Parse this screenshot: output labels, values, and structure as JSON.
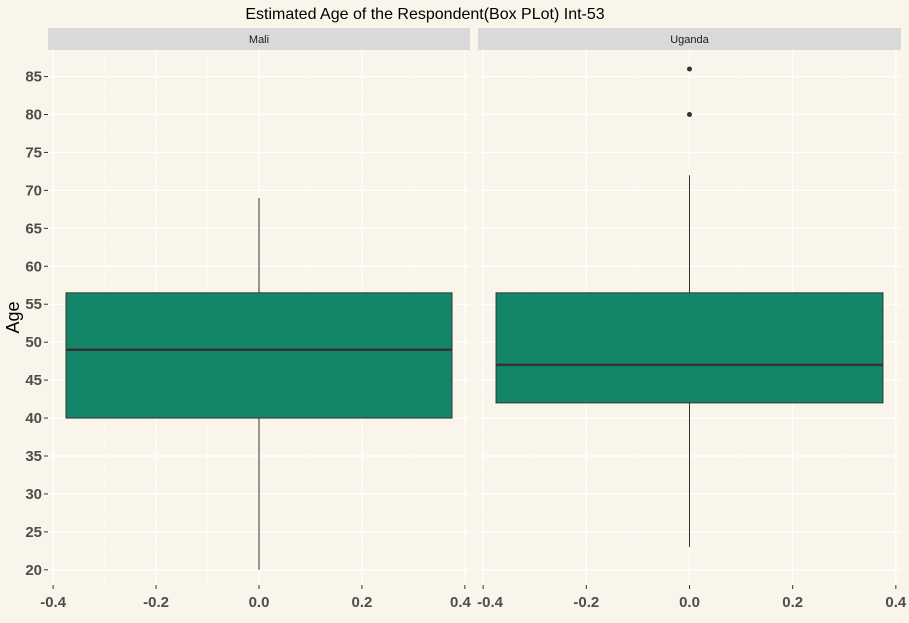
{
  "chart_data": {
    "type": "boxplot",
    "title": "Estimated Age of the Respondent(Box PLot) Int-53",
    "xlabel": "",
    "ylabel": "Age",
    "ylim": [
      18,
      88.5
    ],
    "xlim": [
      -0.41,
      0.41
    ],
    "y_ticks": [
      20,
      25,
      30,
      35,
      40,
      45,
      50,
      55,
      60,
      65,
      70,
      75,
      80,
      85
    ],
    "x_ticks": [
      -0.4,
      -0.2,
      0.0,
      0.2,
      0.4
    ],
    "x_tick_labels": [
      "-0.4",
      "-0.2",
      "0.0",
      "0.2",
      "0.4"
    ],
    "grid": true,
    "fill_color": "#138669",
    "background_color": "#f9f5ea",
    "strip_color": "#d9d9d9",
    "facets": [
      {
        "name": "Mali",
        "q1": 40,
        "median": 49,
        "q3": 56.5,
        "whisker_low": 20,
        "whisker_high": 69,
        "outliers": [],
        "box_x": [
          -0.375,
          0.375
        ]
      },
      {
        "name": "Uganda",
        "q1": 42,
        "median": 47,
        "q3": 56.5,
        "whisker_low": 23,
        "whisker_high": 72,
        "outliers": [
          80,
          86
        ],
        "box_x": [
          -0.375,
          0.375
        ]
      }
    ]
  }
}
